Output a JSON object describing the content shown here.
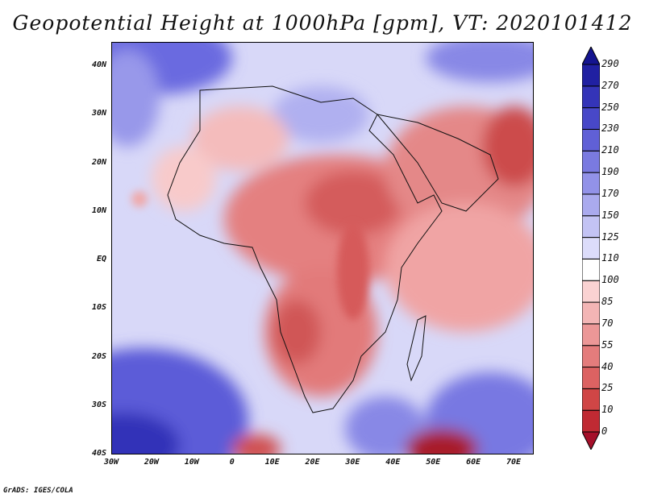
{
  "title": "Geopotential Height at 1000hPa [gpm], VT: 2020101412",
  "credit": "GrADS: IGES/COLA",
  "map": {
    "lon_range": [
      -30,
      75
    ],
    "lat_range": [
      -40,
      45
    ],
    "lat_ticks": [
      {
        "value": 40,
        "label": "40N"
      },
      {
        "value": 30,
        "label": "30N"
      },
      {
        "value": 20,
        "label": "20N"
      },
      {
        "value": 10,
        "label": "10N"
      },
      {
        "value": 0,
        "label": "EQ"
      },
      {
        "value": -10,
        "label": "10S"
      },
      {
        "value": -20,
        "label": "20S"
      },
      {
        "value": -30,
        "label": "30S"
      },
      {
        "value": -40,
        "label": "40S"
      }
    ],
    "lon_ticks": [
      {
        "value": -30,
        "label": "30W"
      },
      {
        "value": -20,
        "label": "20W"
      },
      {
        "value": -10,
        "label": "10W"
      },
      {
        "value": 0,
        "label": "0"
      },
      {
        "value": 10,
        "label": "10E"
      },
      {
        "value": 20,
        "label": "20E"
      },
      {
        "value": 30,
        "label": "30E"
      },
      {
        "value": 40,
        "label": "40E"
      },
      {
        "value": 50,
        "label": "50E"
      },
      {
        "value": 60,
        "label": "60E"
      },
      {
        "value": 70,
        "label": "70E"
      }
    ]
  },
  "colorbar": {
    "levels": [
      "0",
      "10",
      "25",
      "40",
      "55",
      "70",
      "85",
      "100",
      "110",
      "125",
      "150",
      "170",
      "190",
      "210",
      "230",
      "250",
      "270",
      "290"
    ],
    "colors": [
      "#a5102a",
      "#c02a33",
      "#d04646",
      "#dc6262",
      "#e47c7c",
      "#ec9797",
      "#f3b5b5",
      "#fad2d2",
      "#ffffff",
      "#dcdcfa",
      "#c3c3f4",
      "#aaaaee",
      "#9292e8",
      "#7a7ae0",
      "#6060d6",
      "#4848c8",
      "#3434b8",
      "#2020a2",
      "#141490"
    ]
  }
}
